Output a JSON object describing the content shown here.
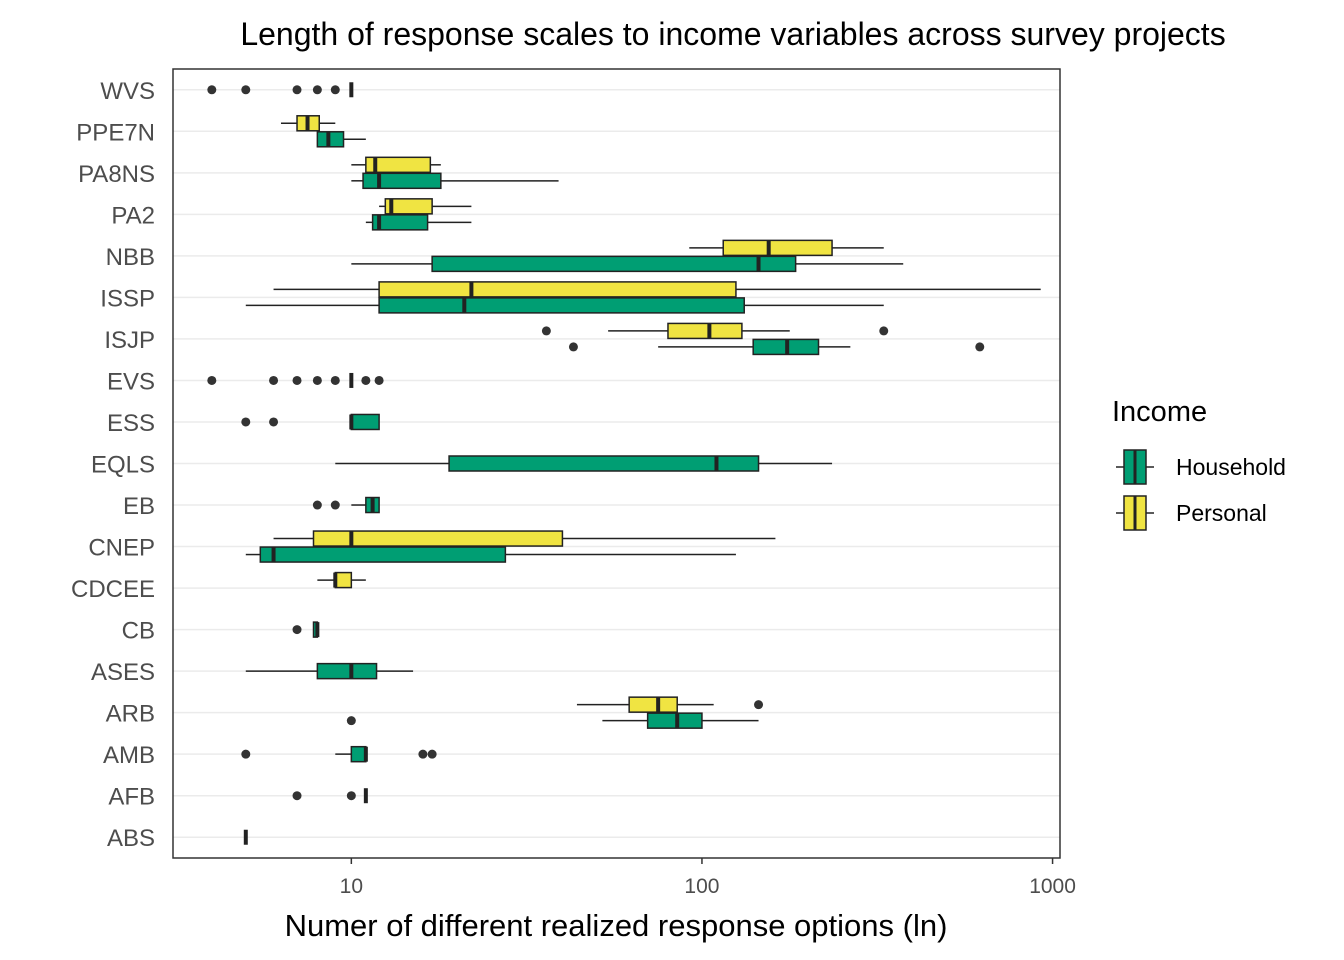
{
  "colors": {
    "Household": "#009E73",
    "Personal": "#F0E442",
    "outline": "#222222",
    "grid": "#ebebeb",
    "axis_text": "#4d4d4d"
  },
  "chart_data": {
    "type": "boxplot",
    "title": "Length of response scales to income variables across survey projects",
    "xlabel": "Numer of different realized response options (ln)",
    "ylabel": "",
    "x_scale": "log10",
    "xlim": [
      3.1,
      1050
    ],
    "x_ticks": [
      10,
      100,
      1000
    ],
    "x_tick_labels": [
      "10",
      "100",
      "1000"
    ],
    "grid": "horizontal major lines",
    "legend": {
      "title": "Income",
      "position": "right",
      "entries": [
        "Household",
        "Personal"
      ]
    },
    "categories": [
      "WVS",
      "PPE7N",
      "PA8NS",
      "PA2",
      "NBB",
      "ISSP",
      "ISJP",
      "EVS",
      "ESS",
      "EQLS",
      "EB",
      "CNEP",
      "CDCEE",
      "CB",
      "ASES",
      "ARB",
      "AMB",
      "AFB",
      "ABS"
    ],
    "series": [
      {
        "name": "Household",
        "boxes": [
          {
            "category": "WVS",
            "whisker_low": 10,
            "q1": 10,
            "median": 10,
            "q3": 10,
            "whisker_high": 10,
            "outliers": [
              4,
              5,
              7,
              8,
              9
            ]
          },
          {
            "category": "PPE7N",
            "whisker_low": 8,
            "q1": 8,
            "median": 8.6,
            "q3": 9.5,
            "whisker_high": 11,
            "outliers": []
          },
          {
            "category": "PA8NS",
            "whisker_low": 10,
            "q1": 10.8,
            "median": 12,
            "q3": 18,
            "whisker_high": 39,
            "outliers": []
          },
          {
            "category": "PA2",
            "whisker_low": 11,
            "q1": 11.5,
            "median": 12,
            "q3": 16.5,
            "whisker_high": 22,
            "outliers": []
          },
          {
            "category": "NBB",
            "whisker_low": 10,
            "q1": 17,
            "median": 145,
            "q3": 185,
            "whisker_high": 375,
            "outliers": []
          },
          {
            "category": "ISSP",
            "whisker_low": 5,
            "q1": 12,
            "median": 21,
            "q3": 132,
            "whisker_high": 330,
            "outliers": []
          },
          {
            "category": "ISJP",
            "whisker_low": 75,
            "q1": 140,
            "median": 175,
            "q3": 215,
            "whisker_high": 265,
            "outliers": [
              43,
              620
            ]
          },
          {
            "category": "EVS",
            "whisker_low": 10,
            "q1": 10,
            "median": 10,
            "q3": 10,
            "whisker_high": 10,
            "outliers": [
              4,
              6,
              7,
              8,
              9,
              11,
              12
            ]
          },
          {
            "category": "ESS",
            "whisker_low": 10,
            "q1": 10,
            "median": 10,
            "q3": 12,
            "whisker_high": 12,
            "outliers": [
              5,
              6
            ]
          },
          {
            "category": "EQLS",
            "whisker_low": 9,
            "q1": 19,
            "median": 110,
            "q3": 145,
            "whisker_high": 235,
            "outliers": []
          },
          {
            "category": "EB",
            "whisker_low": 10,
            "q1": 11,
            "median": 11.5,
            "q3": 12,
            "whisker_high": 12,
            "outliers": [
              8,
              9
            ]
          },
          {
            "category": "CNEP",
            "whisker_low": 5,
            "q1": 5.5,
            "median": 6,
            "q3": 27.5,
            "whisker_high": 125,
            "outliers": []
          },
          {
            "category": "CB",
            "whisker_low": 7.8,
            "q1": 7.8,
            "median": 8,
            "q3": 8,
            "whisker_high": 8,
            "outliers": [
              7
            ]
          },
          {
            "category": "ASES",
            "whisker_low": 5,
            "q1": 8,
            "median": 10,
            "q3": 11.8,
            "whisker_high": 15,
            "outliers": []
          },
          {
            "category": "ARB",
            "whisker_low": 52,
            "q1": 70,
            "median": 85,
            "q3": 100,
            "whisker_high": 145,
            "outliers": [
              10
            ]
          },
          {
            "category": "AMB",
            "whisker_low": 9,
            "q1": 10,
            "median": 11,
            "q3": 11,
            "whisker_high": 11,
            "outliers": [
              5,
              16,
              17
            ]
          },
          {
            "category": "AFB",
            "whisker_low": 11,
            "q1": 11,
            "median": 11,
            "q3": 11,
            "whisker_high": 11,
            "outliers": [
              7,
              10
            ]
          },
          {
            "category": "ABS",
            "whisker_low": 5,
            "q1": 5,
            "median": 5,
            "q3": 5,
            "whisker_high": 5,
            "outliers": []
          }
        ]
      },
      {
        "name": "Personal",
        "boxes": [
          {
            "category": "PPE7N",
            "whisker_low": 6.3,
            "q1": 7,
            "median": 7.5,
            "q3": 8.1,
            "whisker_high": 9,
            "outliers": []
          },
          {
            "category": "PA8NS",
            "whisker_low": 10,
            "q1": 11,
            "median": 11.7,
            "q3": 16.8,
            "whisker_high": 18,
            "outliers": []
          },
          {
            "category": "PA2",
            "whisker_low": 12,
            "q1": 12.5,
            "median": 13,
            "q3": 17,
            "whisker_high": 22,
            "outliers": []
          },
          {
            "category": "NBB",
            "whisker_low": 92,
            "q1": 115,
            "median": 155,
            "q3": 235,
            "whisker_high": 330,
            "outliers": []
          },
          {
            "category": "ISSP",
            "whisker_low": 6,
            "q1": 12,
            "median": 22,
            "q3": 125,
            "whisker_high": 925,
            "outliers": []
          },
          {
            "category": "ISJP",
            "whisker_low": 54,
            "q1": 80,
            "median": 105,
            "q3": 130,
            "whisker_high": 178,
            "outliers": [
              36,
              330
            ]
          },
          {
            "category": "CNEP",
            "whisker_low": 6,
            "q1": 7.8,
            "median": 10,
            "q3": 40,
            "whisker_high": 162,
            "outliers": []
          },
          {
            "category": "CDCEE",
            "whisker_low": 8,
            "q1": 9,
            "median": 9,
            "q3": 10,
            "whisker_high": 11,
            "outliers": []
          },
          {
            "category": "ARB",
            "whisker_low": 44,
            "q1": 62,
            "median": 75,
            "q3": 85,
            "whisker_high": 108,
            "outliers": [
              145
            ]
          }
        ]
      }
    ]
  }
}
